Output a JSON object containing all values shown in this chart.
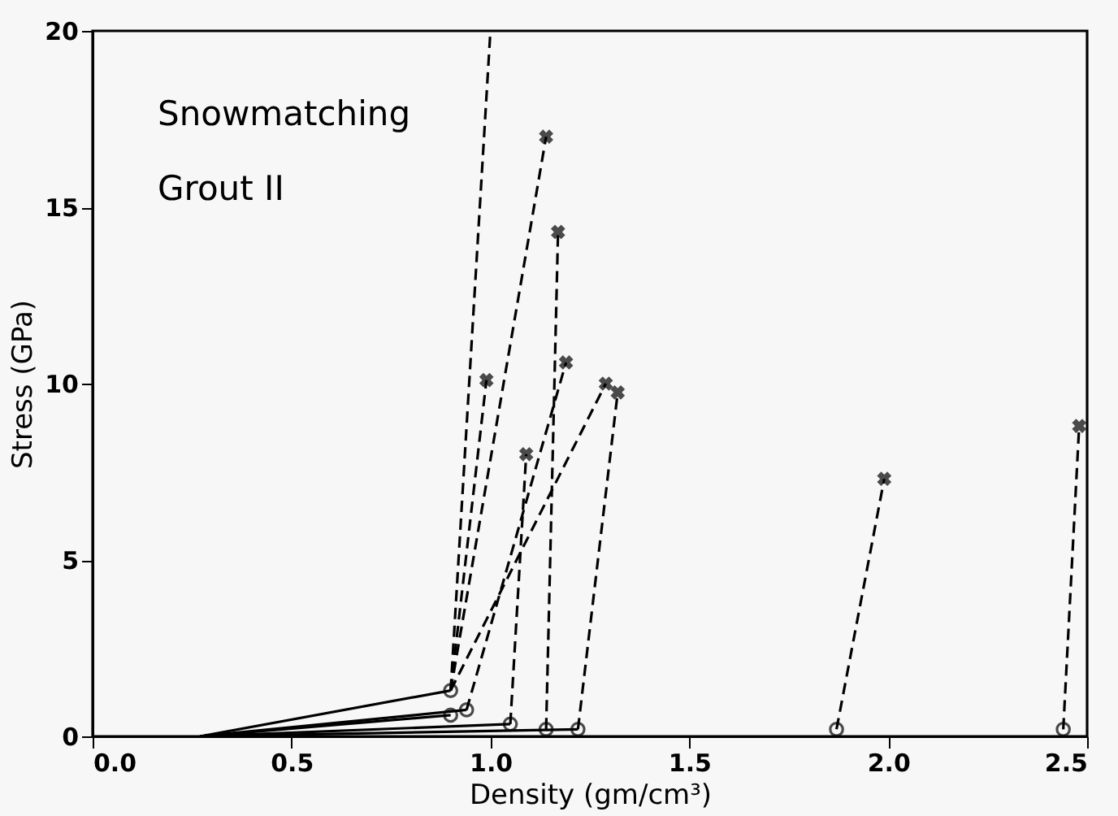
{
  "chart_data": {
    "type": "line",
    "xlabel": "Density (gm/cm³)",
    "ylabel": "Stress (GPa)",
    "annotations": [
      "Snowmatching",
      "Grout II"
    ],
    "xlim": [
      0,
      2.5
    ],
    "ylim": [
      0,
      20
    ],
    "xticks": [
      {
        "value": 0,
        "label": "0.0"
      },
      {
        "value": 0.5,
        "label": "0.5"
      },
      {
        "value": 1,
        "label": "1.0"
      },
      {
        "value": 1.5,
        "label": "1.5"
      },
      {
        "value": 2,
        "label": "2.0"
      },
      {
        "value": 2.5,
        "label": "2.5"
      }
    ],
    "yticks": [
      0,
      5,
      10,
      15,
      20
    ],
    "grid": false,
    "series": [
      {
        "type": "line",
        "color": "#000000",
        "line_style": "solid",
        "marker": "none",
        "x": [
          0.27,
          0.9
        ],
        "values": [
          0,
          1.3
        ]
      },
      {
        "type": "line",
        "color": "#000000",
        "line_style": "solid",
        "marker": "none",
        "x": [
          0.27,
          0.94
        ],
        "values": [
          0,
          0.75
        ]
      },
      {
        "type": "line",
        "color": "#000000",
        "line_style": "solid",
        "marker": "none",
        "x": [
          0.27,
          0.9
        ],
        "values": [
          0,
          0.6
        ]
      },
      {
        "type": "line",
        "color": "#000000",
        "line_style": "solid",
        "marker": "none",
        "x": [
          0.27,
          1.05
        ],
        "values": [
          0,
          0.35
        ]
      },
      {
        "type": "line",
        "color": "#000000",
        "line_style": "solid",
        "marker": "none",
        "x": [
          0.27,
          1.22
        ],
        "values": [
          0,
          0.2
        ]
      },
      {
        "type": "line",
        "color": "#000000",
        "line_style": "dashed",
        "marker": "none",
        "x": [
          0.9,
          0.99
        ],
        "values": [
          1.3,
          10.1
        ]
      },
      {
        "type": "line",
        "color": "#000000",
        "line_style": "dashed",
        "marker": "none",
        "x": [
          0.9,
          1.0
        ],
        "values": [
          1.3,
          20
        ]
      },
      {
        "type": "line",
        "color": "#000000",
        "line_style": "dashed",
        "marker": "none",
        "x": [
          0.9,
          1.14
        ],
        "values": [
          1.3,
          17.0
        ]
      },
      {
        "type": "line",
        "color": "#000000",
        "line_style": "dashed",
        "marker": "none",
        "x": [
          0.9,
          1.29
        ],
        "values": [
          1.3,
          10.0
        ]
      },
      {
        "type": "line",
        "color": "#000000",
        "line_style": "dashed",
        "marker": "none",
        "x": [
          0.94,
          1.19
        ],
        "values": [
          0.75,
          10.6
        ]
      },
      {
        "type": "line",
        "color": "#000000",
        "line_style": "dashed",
        "marker": "none",
        "x": [
          1.05,
          1.09
        ],
        "values": [
          0.35,
          8.0
        ]
      },
      {
        "type": "line",
        "color": "#000000",
        "line_style": "dashed",
        "marker": "none",
        "x": [
          1.14,
          1.17
        ],
        "values": [
          0.2,
          14.3
        ]
      },
      {
        "type": "line",
        "color": "#000000",
        "line_style": "dashed",
        "marker": "none",
        "x": [
          1.22,
          1.32
        ],
        "values": [
          0.2,
          9.75
        ]
      },
      {
        "type": "line",
        "color": "#000000",
        "line_style": "dashed",
        "marker": "none",
        "x": [
          1.87,
          1.99
        ],
        "values": [
          0.2,
          7.3
        ]
      },
      {
        "type": "line",
        "color": "#000000",
        "line_style": "dashed",
        "marker": "none",
        "x": [
          2.44,
          2.48
        ],
        "values": [
          0.2,
          8.8
        ]
      },
      {
        "type": "scatter",
        "color": "#000000",
        "marker": "circle",
        "x": [
          0.9,
          0.94,
          0.9,
          1.05,
          1.14,
          1.22,
          1.87,
          2.44
        ],
        "values": [
          1.3,
          0.75,
          0.6,
          0.35,
          0.2,
          0.2,
          0.2,
          0.2
        ]
      },
      {
        "type": "scatter",
        "color": "#000000",
        "marker": "cross",
        "x": [
          0.99,
          1.14,
          1.17,
          1.19,
          1.09,
          1.29,
          1.32,
          1.99,
          2.48
        ],
        "values": [
          10.1,
          17.0,
          14.3,
          10.6,
          8.0,
          10.0,
          9.75,
          7.3,
          8.8
        ]
      }
    ]
  }
}
